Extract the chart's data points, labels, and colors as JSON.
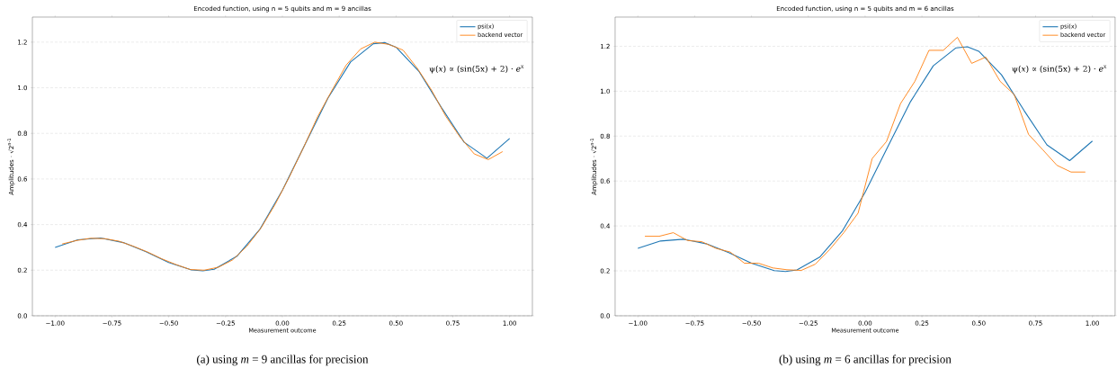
{
  "chart_data": [
    {
      "type": "line",
      "title": "Encoded function, using n = 5 qubits and m = 9 ancillas",
      "xlabel": "Measurement outcome",
      "ylabel": "Amplitudes · √2$^{n-1}$",
      "xlim": [
        -1.1,
        1.1
      ],
      "ylim": [
        0,
        1.31
      ],
      "xticks": [
        {
          "value": -1,
          "label": "−1.00"
        },
        {
          "value": -0.75,
          "label": "−0.75"
        },
        {
          "value": -0.5,
          "label": "−0.50"
        },
        {
          "value": -0.25,
          "label": "−0.25"
        },
        {
          "value": 0,
          "label": "0.00"
        },
        {
          "value": 0.25,
          "label": "0.25"
        },
        {
          "value": 0.5,
          "label": "0.50"
        },
        {
          "value": 0.75,
          "label": "0.75"
        },
        {
          "value": 1,
          "label": "1.00"
        }
      ],
      "yticks": [
        {
          "value": 0,
          "label": "0.0"
        },
        {
          "value": 0.2,
          "label": "0.2"
        },
        {
          "value": 0.4,
          "label": "0.4"
        },
        {
          "value": 0.6,
          "label": "0.6"
        },
        {
          "value": 0.8,
          "label": "0.8"
        },
        {
          "value": 1,
          "label": "1.0"
        },
        {
          "value": 1.2,
          "label": "1.2"
        }
      ],
      "grid": "y",
      "legend": "top right",
      "marker": "none",
      "line_style": "solid",
      "series": [
        {
          "name": "psi(x)",
          "color": "#1f77b4",
          "x": [
            -1,
            -0.9,
            -0.8,
            -0.7,
            -0.6,
            -0.5,
            -0.4,
            -0.35,
            -0.3,
            -0.2,
            -0.1,
            0,
            0.1,
            0.2,
            0.3,
            0.4,
            0.45,
            0.5,
            0.6,
            0.7,
            0.8,
            0.9,
            1
          ],
          "values": [
            0.3,
            0.333,
            0.341,
            0.321,
            0.281,
            0.234,
            0.201,
            0.197,
            0.204,
            0.261,
            0.378,
            0.55,
            0.753,
            0.954,
            1.113,
            1.193,
            1.198,
            1.178,
            1.073,
            0.913,
            0.761,
            0.691,
            0.778
          ]
        },
        {
          "name": "backend vector",
          "color": "#ff7f0e",
          "x": [
            -0.969,
            -0.906,
            -0.844,
            -0.781,
            -0.719,
            -0.656,
            -0.594,
            -0.531,
            -0.469,
            -0.406,
            -0.344,
            -0.281,
            -0.219,
            -0.156,
            -0.094,
            -0.031,
            0.031,
            0.094,
            0.156,
            0.219,
            0.281,
            0.344,
            0.406,
            0.469,
            0.531,
            0.594,
            0.656,
            0.719,
            0.781,
            0.844,
            0.906,
            0.969
          ],
          "values": [
            0.315,
            0.33,
            0.34,
            0.338,
            0.327,
            0.305,
            0.28,
            0.25,
            0.225,
            0.203,
            0.2,
            0.213,
            0.245,
            0.305,
            0.385,
            0.49,
            0.61,
            0.74,
            0.875,
            0.99,
            1.1,
            1.17,
            1.2,
            1.19,
            1.165,
            1.085,
            0.99,
            0.875,
            0.785,
            0.71,
            0.685,
            0.72
          ]
        }
      ],
      "annotations": [
        "ψ(*x*) ∝ (sin(5x) + 2) · *e*$^{x}$",
        "(a) using *m* = 9 ancillas for precision"
      ]
    },
    {
      "type": "line",
      "title": "Encoded function, using n = 5 qubits and m = 6 ancillas",
      "xlabel": "Measurement outcome",
      "ylabel": "Amplitudes · √2$^{n-1}$",
      "xlim": [
        -1.1,
        1.1
      ],
      "ylim": [
        0,
        1.33
      ],
      "xticks": [
        {
          "value": -1,
          "label": "−1.00"
        },
        {
          "value": -0.75,
          "label": "−0.75"
        },
        {
          "value": -0.5,
          "label": "−0.50"
        },
        {
          "value": -0.25,
          "label": "−0.25"
        },
        {
          "value": 0,
          "label": "0.00"
        },
        {
          "value": 0.25,
          "label": "0.25"
        },
        {
          "value": 0.5,
          "label": "0.50"
        },
        {
          "value": 0.75,
          "label": "0.75"
        },
        {
          "value": 1,
          "label": "1.00"
        }
      ],
      "yticks": [
        {
          "value": 0,
          "label": "0.0"
        },
        {
          "value": 0.2,
          "label": "0.2"
        },
        {
          "value": 0.4,
          "label": "0.4"
        },
        {
          "value": 0.6,
          "label": "0.6"
        },
        {
          "value": 0.8,
          "label": "0.8"
        },
        {
          "value": 1,
          "label": "1.0"
        },
        {
          "value": 1.2,
          "label": "1.2"
        }
      ],
      "grid": "y",
      "legend": "top right",
      "marker": "none",
      "line_style": "solid",
      "series": [
        {
          "name": "psi(x)",
          "color": "#1f77b4",
          "x": [
            -1,
            -0.9,
            -0.8,
            -0.7,
            -0.6,
            -0.5,
            -0.4,
            -0.35,
            -0.3,
            -0.2,
            -0.1,
            0,
            0.1,
            0.2,
            0.3,
            0.4,
            0.45,
            0.5,
            0.6,
            0.7,
            0.8,
            0.9,
            1
          ],
          "values": [
            0.3,
            0.333,
            0.341,
            0.321,
            0.281,
            0.234,
            0.201,
            0.197,
            0.204,
            0.261,
            0.378,
            0.55,
            0.753,
            0.954,
            1.113,
            1.193,
            1.198,
            1.178,
            1.073,
            0.913,
            0.761,
            0.691,
            0.778
          ]
        },
        {
          "name": "backend vector",
          "color": "#ff7f0e",
          "x": [
            -0.969,
            -0.906,
            -0.844,
            -0.781,
            -0.719,
            -0.656,
            -0.594,
            -0.531,
            -0.469,
            -0.406,
            -0.344,
            -0.281,
            -0.219,
            -0.156,
            -0.094,
            -0.031,
            0.031,
            0.094,
            0.156,
            0.219,
            0.281,
            0.344,
            0.406,
            0.469,
            0.531,
            0.594,
            0.656,
            0.719,
            0.781,
            0.844,
            0.906,
            0.969
          ],
          "values": [
            0.354,
            0.354,
            0.37,
            0.335,
            0.33,
            0.3,
            0.284,
            0.234,
            0.234,
            0.213,
            0.205,
            0.202,
            0.23,
            0.295,
            0.37,
            0.457,
            0.7,
            0.776,
            0.945,
            1.044,
            1.182,
            1.182,
            1.24,
            1.124,
            1.152,
            1.044,
            0.985,
            0.808,
            0.74,
            0.67,
            0.64,
            0.64
          ]
        }
      ],
      "annotations": [
        "ψ(*x*) ∝ (sin(5x) + 2) · *e*$^{x}$",
        "(b) using *m* = 6 ancillas for precision"
      ]
    }
  ]
}
